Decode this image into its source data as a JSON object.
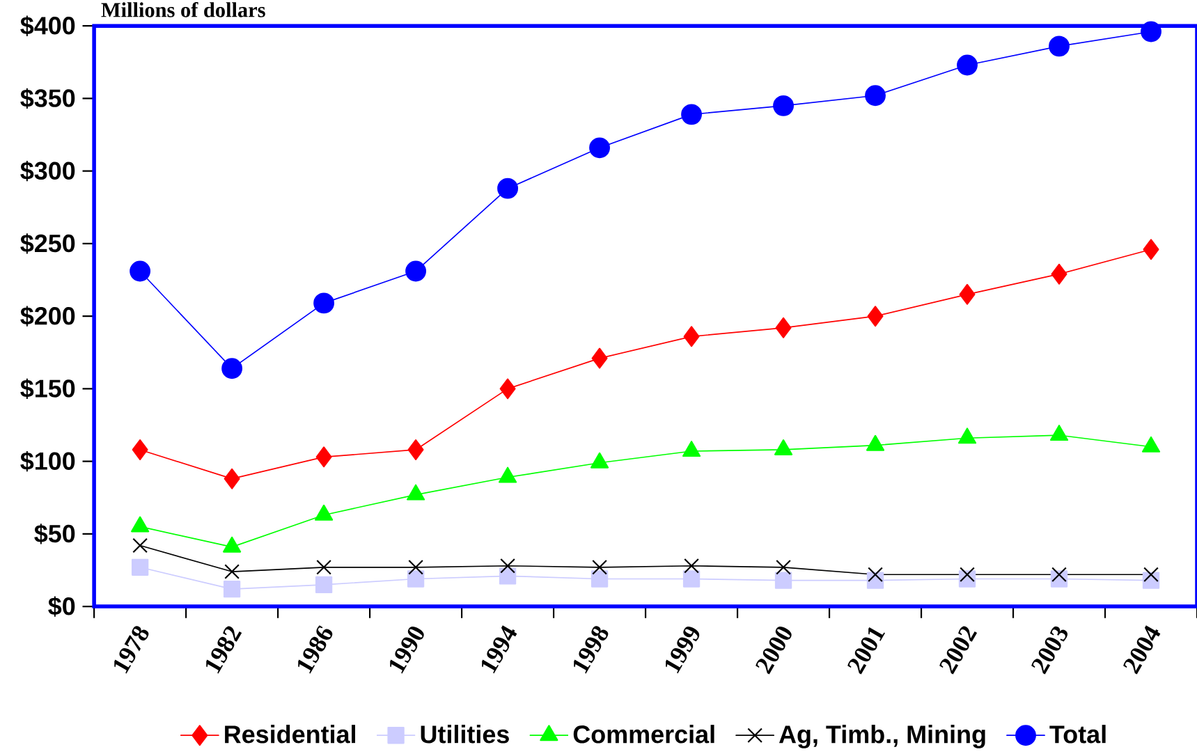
{
  "chart_data": {
    "type": "line",
    "title": "Millions of dollars",
    "categories": [
      "1978",
      "1982",
      "1986",
      "1990",
      "1994",
      "1998",
      "1999",
      "2000",
      "2001",
      "2002",
      "2003",
      "2004"
    ],
    "ylim": [
      0,
      400
    ],
    "yticks": [
      {
        "value": 0,
        "label": "$0"
      },
      {
        "value": 50,
        "label": "$50"
      },
      {
        "value": 100,
        "label": "$100"
      },
      {
        "value": 150,
        "label": "$150"
      },
      {
        "value": 200,
        "label": "$200"
      },
      {
        "value": 250,
        "label": "$250"
      },
      {
        "value": 300,
        "label": "$300"
      },
      {
        "value": 350,
        "label": "$350"
      },
      {
        "value": 400,
        "label": "$400"
      }
    ],
    "grid": false,
    "legend": "bottom",
    "series": [
      {
        "name": "Residential",
        "color": "#ff0000",
        "marker": "diamond",
        "values": [
          108,
          88,
          103,
          108,
          150,
          171,
          186,
          192,
          200,
          215,
          229,
          246
        ]
      },
      {
        "name": "Utilities",
        "color": "#ccccff",
        "marker": "square",
        "values": [
          27,
          12,
          15,
          19,
          21,
          19,
          19,
          18,
          18,
          19,
          19,
          18
        ]
      },
      {
        "name": "Commercial",
        "color": "#00ff00",
        "marker": "triangle",
        "values": [
          55,
          41,
          63,
          77,
          89,
          99,
          107,
          108,
          111,
          116,
          118,
          110
        ]
      },
      {
        "name": "Ag, Timb., Mining",
        "color": "#000000",
        "marker": "cross",
        "values": [
          42,
          24,
          27,
          27,
          28,
          27,
          28,
          27,
          22,
          22,
          22,
          22
        ]
      },
      {
        "name": "Total",
        "color": "#0000ff",
        "marker": "circle",
        "values": [
          231,
          164,
          209,
          231,
          288,
          316,
          339,
          345,
          352,
          373,
          386,
          396
        ]
      }
    ]
  }
}
